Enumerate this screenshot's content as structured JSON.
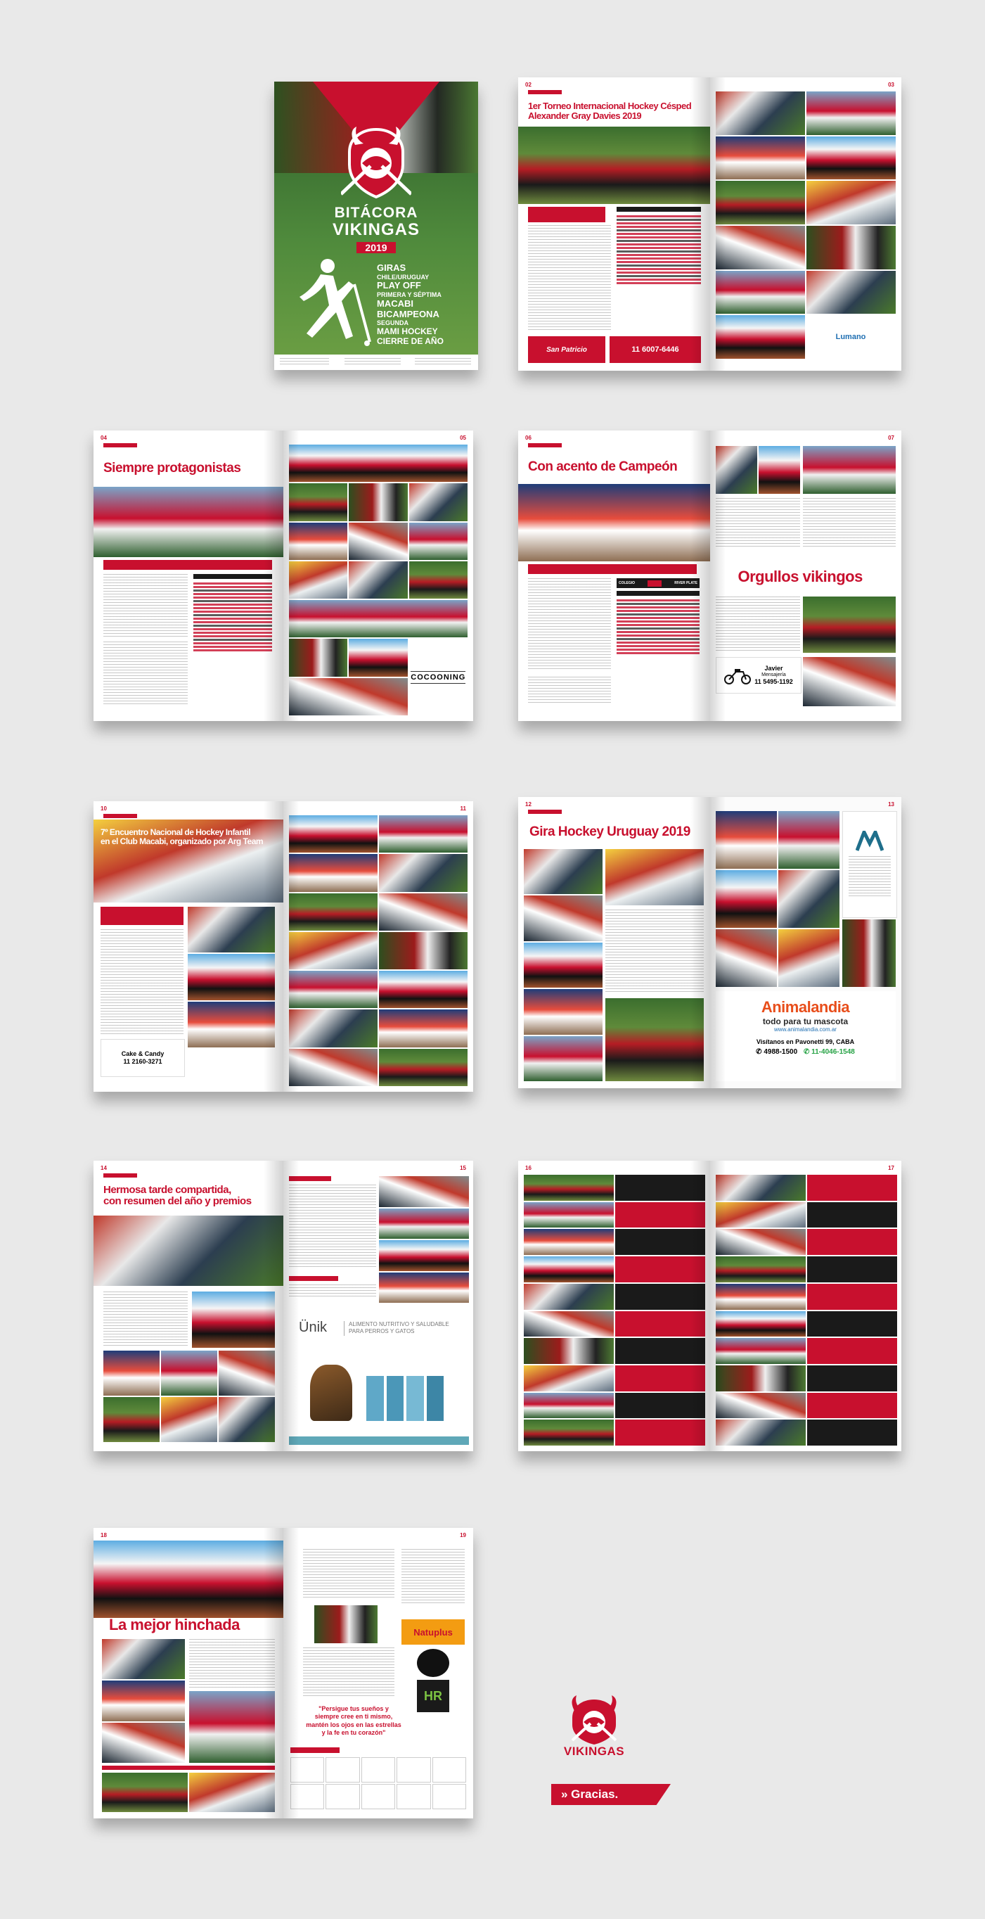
{
  "cover": {
    "title_line1": "BITÁCORA",
    "title_line2": "VIKINGAS",
    "year": "2019",
    "menu": [
      "GIRAS",
      "CHILE/URUGUAY",
      "PLAY OFF",
      "PRIMERA Y SÉPTIMA",
      "MACABI",
      "BICAMPEONA",
      "SEGUNDA",
      "MAMI HOCKEY",
      "CIERRE DE AÑO"
    ]
  },
  "spreads": [
    {
      "left_num": "02",
      "right_num": "03",
      "headline_line1": "1er Torneo Internacional Hockey Césped",
      "headline_line2": "Alexander Gray Davies 2019",
      "ad_left": "San Patricio",
      "ad_phone": "11 6007-6446",
      "ad_right": "Lumano"
    },
    {
      "left_num": "04",
      "right_num": "05",
      "headline": "Siempre protagonistas",
      "ad_right": "COCOONING"
    },
    {
      "left_num": "06",
      "right_num": "07",
      "headline_left": "Con acento de Campeón",
      "headline_right": "Orgullos vikingos",
      "score_left": "COLEGIO",
      "score_right": "RIVER PLATE",
      "ad_name": "Javier",
      "ad_sub": "Mensajería",
      "ad_phone": "11 5495-1192"
    },
    {
      "left_num": "10",
      "right_num": "11",
      "headline_line1": "7º Encuentro Nacional de Hockey Infantil",
      "headline_line2": "en el Club Macabi, organizado por Arg Team",
      "ad_left": "Cake & Candy",
      "ad_left_phone": "11 2160-3271"
    },
    {
      "left_num": "12",
      "right_num": "13",
      "headline": "Gira Hockey Uruguay 2019",
      "ad_brand": "Animalandia",
      "ad_tag": "todo para tu mascota",
      "ad_url": "www.animalandia.com.ar",
      "ad_address": "Visítanos en Pavonetti 99, CABA",
      "ad_phone1": "4988-1500",
      "ad_phone2": "11-4046-1548"
    },
    {
      "left_num": "14",
      "right_num": "15",
      "headline_line1": "Hermosa tarde compartida,",
      "headline_line2": "con resumen del año y premios",
      "ad_brand": "Ünik",
      "ad_tag_line1": "ALIMENTO NUTRITIVO Y SALUDABLE",
      "ad_tag_line2": "PARA PERROS Y GATOS"
    },
    {
      "left_num": "16",
      "right_num": "17"
    },
    {
      "left_num": "18",
      "right_num": "19",
      "headline": "La mejor hinchada",
      "quote_line1": "\"Persigue tus sueños y",
      "quote_line2": "siempre cree en ti mismo,",
      "quote_line3": "mantén los ojos en las estrellas",
      "quote_line4": "y la fe en tu corazón\"",
      "ad_natuplus": "Natuplus"
    }
  ],
  "logo_text": "VIKINGAS",
  "thanks": "» Gracias."
}
